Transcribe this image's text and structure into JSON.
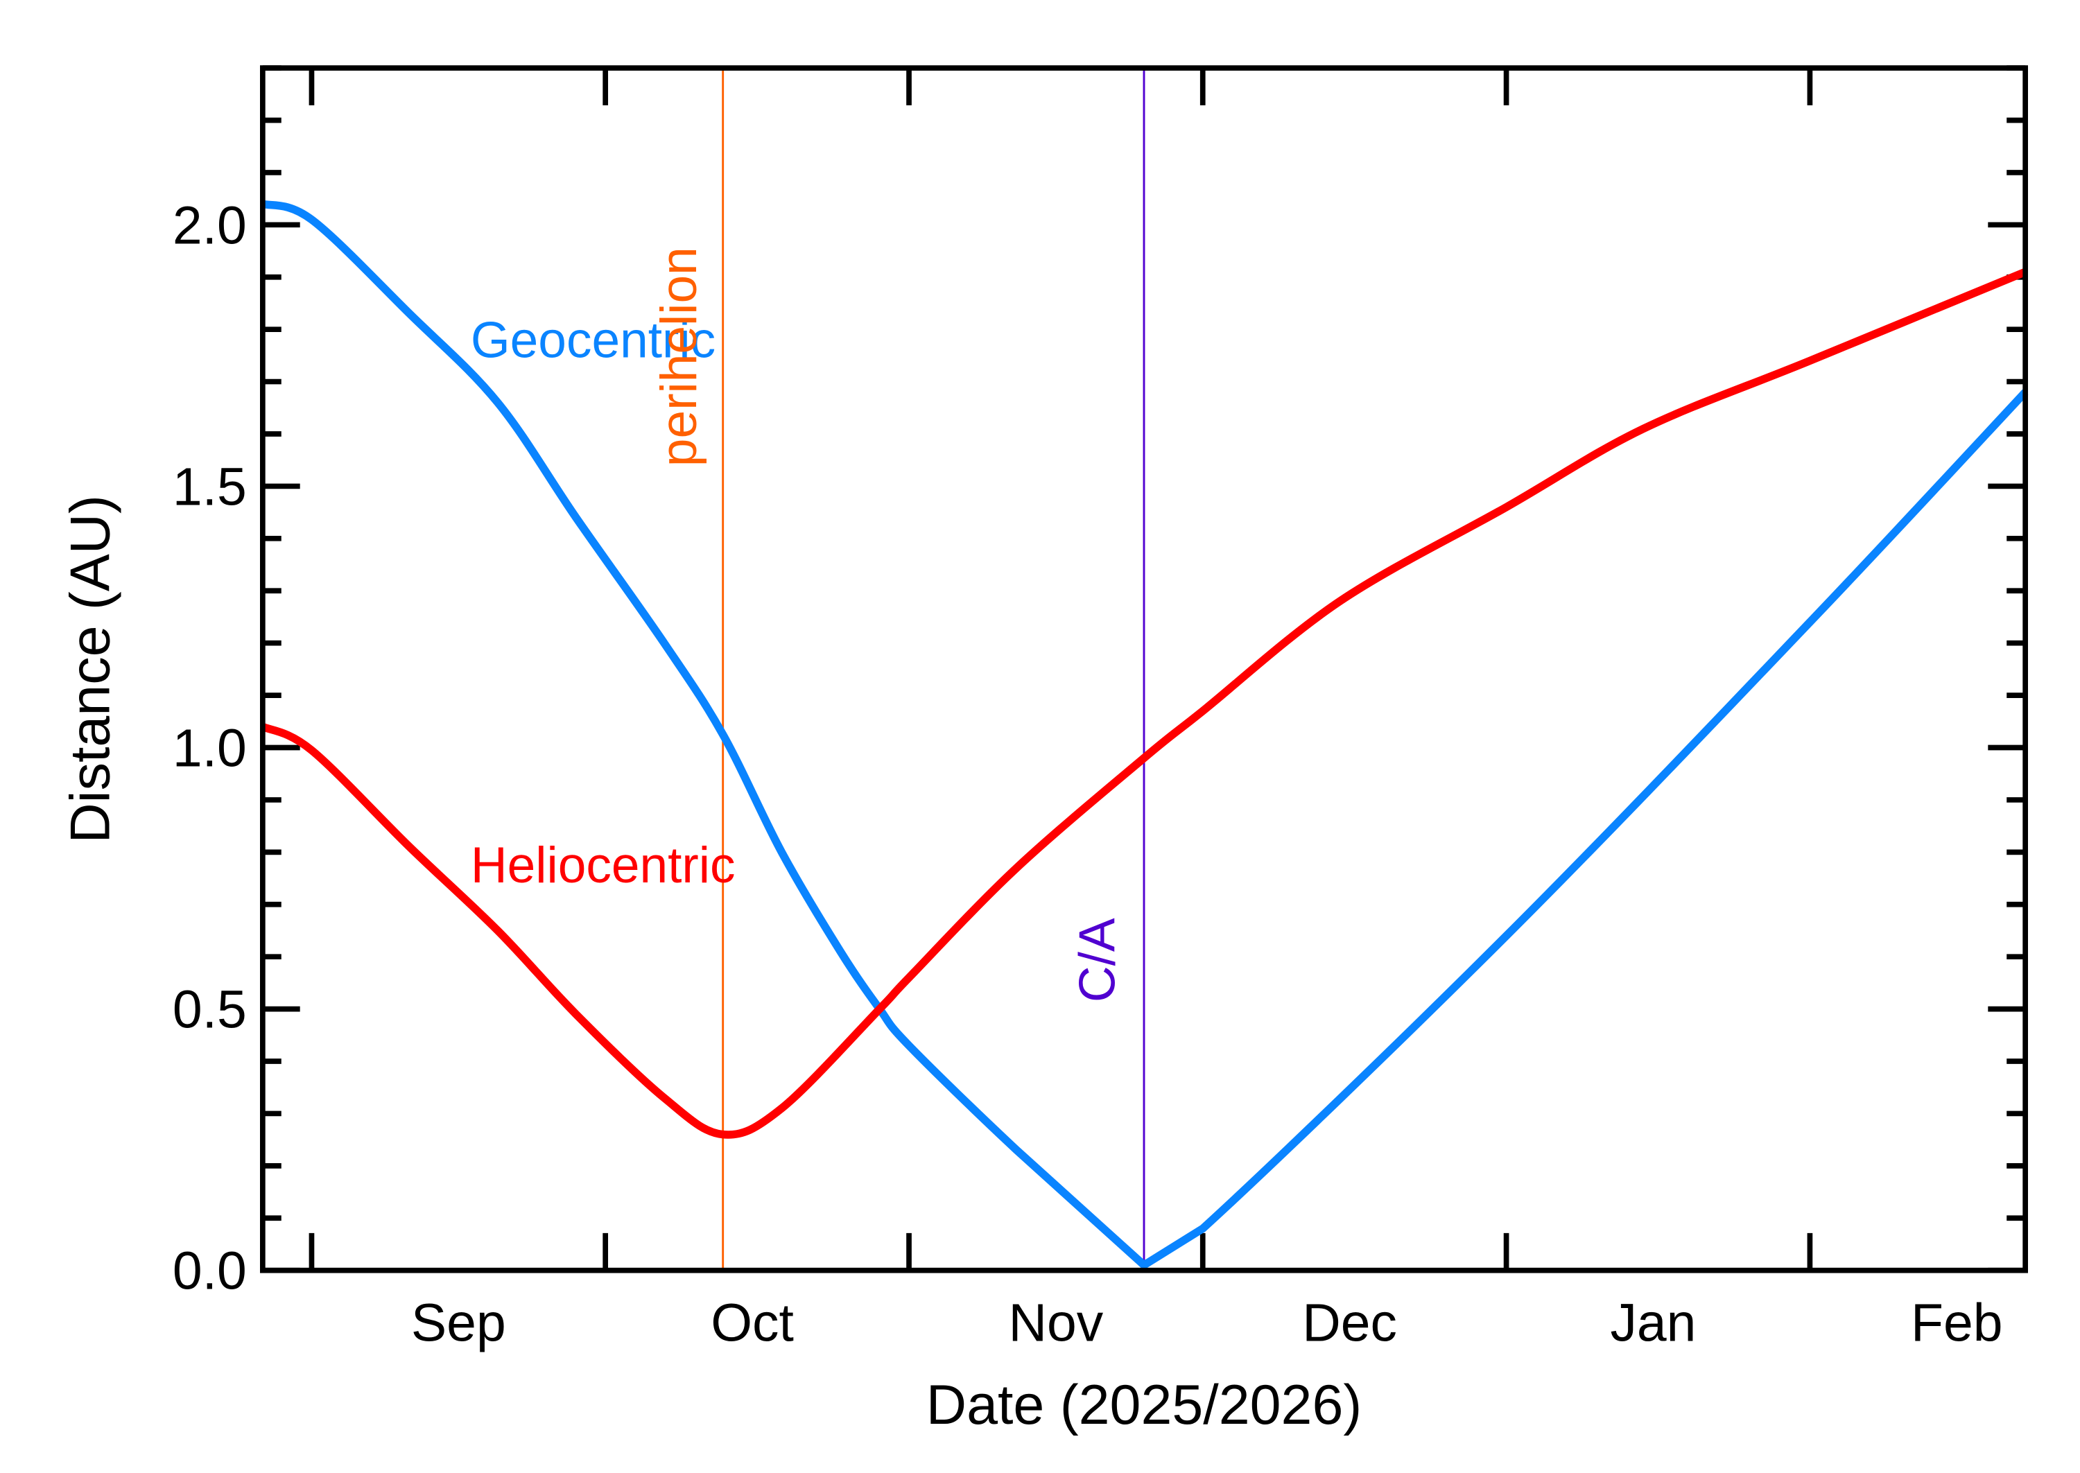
{
  "chart_data": {
    "type": "line",
    "title": "",
    "xlabel": "Date (2025/2026)",
    "ylabel": "Distance (AU)",
    "xlim": [
      "2025-08-27",
      "2026-02-23"
    ],
    "ylim": [
      0,
      2.3
    ],
    "grid": false,
    "x_ticks": [
      {
        "date": "2025-09-01",
        "label": "Sep"
      },
      {
        "date": "2025-10-01",
        "label": "Oct"
      },
      {
        "date": "2025-11-01",
        "label": "Nov"
      },
      {
        "date": "2025-12-01",
        "label": "Dec"
      },
      {
        "date": "2026-01-01",
        "label": "Jan"
      },
      {
        "date": "2026-02-01",
        "label": "Feb"
      }
    ],
    "y_ticks": [
      {
        "value": 0.0,
        "label": "0.0"
      },
      {
        "value": 0.5,
        "label": "0.5"
      },
      {
        "value": 1.0,
        "label": "1.0"
      },
      {
        "value": 1.5,
        "label": "1.5"
      },
      {
        "value": 2.0,
        "label": "2.0"
      }
    ],
    "series": [
      {
        "name": "Geocentric",
        "color": "#0a84ff",
        "points": [
          [
            "2025-08-27",
            2.04
          ],
          [
            "2025-09-01",
            2.01
          ],
          [
            "2025-09-11",
            1.83
          ],
          [
            "2025-09-20",
            1.66
          ],
          [
            "2025-09-28",
            1.44
          ],
          [
            "2025-10-07",
            1.2
          ],
          [
            "2025-10-13",
            1.025
          ],
          [
            "2025-10-19",
            0.8
          ],
          [
            "2025-10-25",
            0.61
          ],
          [
            "2025-10-29",
            0.5
          ],
          [
            "2025-11-01",
            0.43
          ],
          [
            "2025-11-12",
            0.23
          ],
          [
            "2025-11-25",
            0.01
          ],
          [
            "2025-12-01",
            0.08
          ],
          [
            "2026-01-01",
            0.64
          ],
          [
            "2026-02-01",
            1.24
          ],
          [
            "2026-02-23",
            1.68
          ]
        ]
      },
      {
        "name": "Heliocentric",
        "color": "#ff0000",
        "points": [
          [
            "2025-08-27",
            1.04
          ],
          [
            "2025-09-01",
            0.995
          ],
          [
            "2025-09-11",
            0.81
          ],
          [
            "2025-09-20",
            0.65
          ],
          [
            "2025-09-28",
            0.49
          ],
          [
            "2025-10-07",
            0.33
          ],
          [
            "2025-10-13",
            0.26
          ],
          [
            "2025-10-19",
            0.31
          ],
          [
            "2025-10-29",
            0.5
          ],
          [
            "2025-11-01",
            0.56
          ],
          [
            "2025-11-12",
            0.77
          ],
          [
            "2025-11-25",
            0.98
          ],
          [
            "2025-12-01",
            1.07
          ],
          [
            "2025-12-15",
            1.28
          ],
          [
            "2026-01-01",
            1.46
          ],
          [
            "2026-01-15",
            1.61
          ],
          [
            "2026-02-01",
            1.74
          ],
          [
            "2026-02-23",
            1.91
          ]
        ]
      }
    ],
    "annotations": [
      {
        "label": "perihelion",
        "date": "2025-10-13",
        "color": "#ff6000"
      },
      {
        "label": "C/A",
        "date": "2025-11-25",
        "color": "#5000d0"
      }
    ]
  }
}
